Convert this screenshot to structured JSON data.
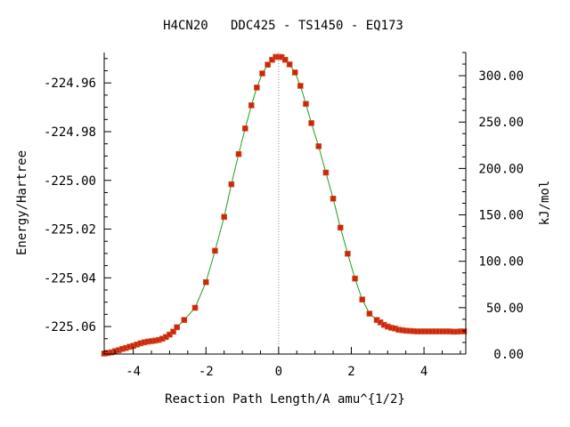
{
  "chart_data": {
    "type": "line",
    "title": "H4CN20   DDC425 - TS1450 - EQ173",
    "xlabel": "Reaction Path Length/A amu^{1/2}",
    "ylabel": "Energy/Hartree",
    "y2label": "kJ/mol",
    "xlim": [
      -4.8,
      5.15
    ],
    "ylim": [
      -225.0713,
      -224.9475
    ],
    "y2lim": [
      0,
      325
    ],
    "x_ticks": [
      -4,
      -2,
      0,
      2,
      4
    ],
    "x_tick_labels": [
      "-4",
      "-2",
      "0",
      "2",
      "4"
    ],
    "y_ticks": [
      -224.96,
      -224.98,
      -225.0,
      -225.02,
      -225.04,
      -225.06
    ],
    "y_tick_labels": [
      "-224.96",
      "-224.98",
      "-225.00",
      "-225.02",
      "-225.04",
      "-225.06"
    ],
    "y2_ticks": [
      0,
      50,
      100,
      150,
      200,
      250,
      300
    ],
    "y2_tick_labels": [
      "0.00",
      "50.00",
      "100.00",
      "150.00",
      "200.00",
      "250.00",
      "300.00"
    ],
    "ts_marker_x": 0,
    "colors": {
      "curve": "#1aa01a",
      "points": "#c8280f",
      "axis": "#000000",
      "ts_line": "#888888"
    },
    "series": [
      {
        "points_x": [
          -4.8,
          -4.7,
          -4.6,
          -4.5,
          -4.4,
          -4.3,
          -4.2,
          -4.1,
          -4.0,
          -3.9,
          -3.8,
          -3.7,
          -3.6,
          -3.5,
          -3.4,
          -3.3,
          -3.2,
          -3.1,
          -3.0,
          -2.9,
          -2.8,
          -2.6,
          -2.3,
          -2.0,
          -1.75,
          -1.5,
          -1.3,
          -1.1,
          -0.92,
          -0.75,
          -0.6,
          -0.45,
          -0.3,
          -0.18,
          -0.08,
          0.0,
          0.08,
          0.18,
          0.3,
          0.45,
          0.6,
          0.75,
          0.9,
          1.1,
          1.3,
          1.5,
          1.7,
          1.9,
          2.1,
          2.3,
          2.5,
          2.7,
          2.8,
          2.9,
          3.0,
          3.1,
          3.2,
          3.3,
          3.4,
          3.5,
          3.6,
          3.7,
          3.8,
          3.9,
          4.0,
          4.1,
          4.2,
          4.3,
          4.4,
          4.5,
          4.6,
          4.7,
          4.8,
          4.9,
          5.0,
          5.1
        ],
        "points_y": [
          -225.0711,
          -225.0709,
          -225.0706,
          -225.0701,
          -225.0697,
          -225.0692,
          -225.0688,
          -225.0683,
          -225.0679,
          -225.0674,
          -225.0669,
          -225.0665,
          -225.0662,
          -225.066,
          -225.0658,
          -225.0655,
          -225.065,
          -225.0643,
          -225.0633,
          -225.0621,
          -225.0603,
          -225.0573,
          -225.0523,
          -225.0418,
          -225.0289,
          -225.015,
          -225.0016,
          -224.9892,
          -224.9787,
          -224.9692,
          -224.9619,
          -224.9561,
          -224.9525,
          -224.9505,
          -224.9493,
          -224.9493,
          -224.9494,
          -224.9505,
          -224.9524,
          -224.9557,
          -224.9612,
          -224.9686,
          -224.9765,
          -224.986,
          -224.9968,
          -225.0075,
          -225.0194,
          -225.0301,
          -225.0403,
          -225.0489,
          -225.0547,
          -225.0573,
          -225.0583,
          -225.0593,
          -225.06,
          -225.0605,
          -225.0608,
          -225.0613,
          -225.0615,
          -225.0617,
          -225.0618,
          -225.0619,
          -225.062,
          -225.062,
          -225.062,
          -225.062,
          -225.062,
          -225.062,
          -225.062,
          -225.062,
          -225.062,
          -225.062,
          -225.0621,
          -225.0621,
          -225.062,
          -225.062
        ]
      }
    ]
  }
}
